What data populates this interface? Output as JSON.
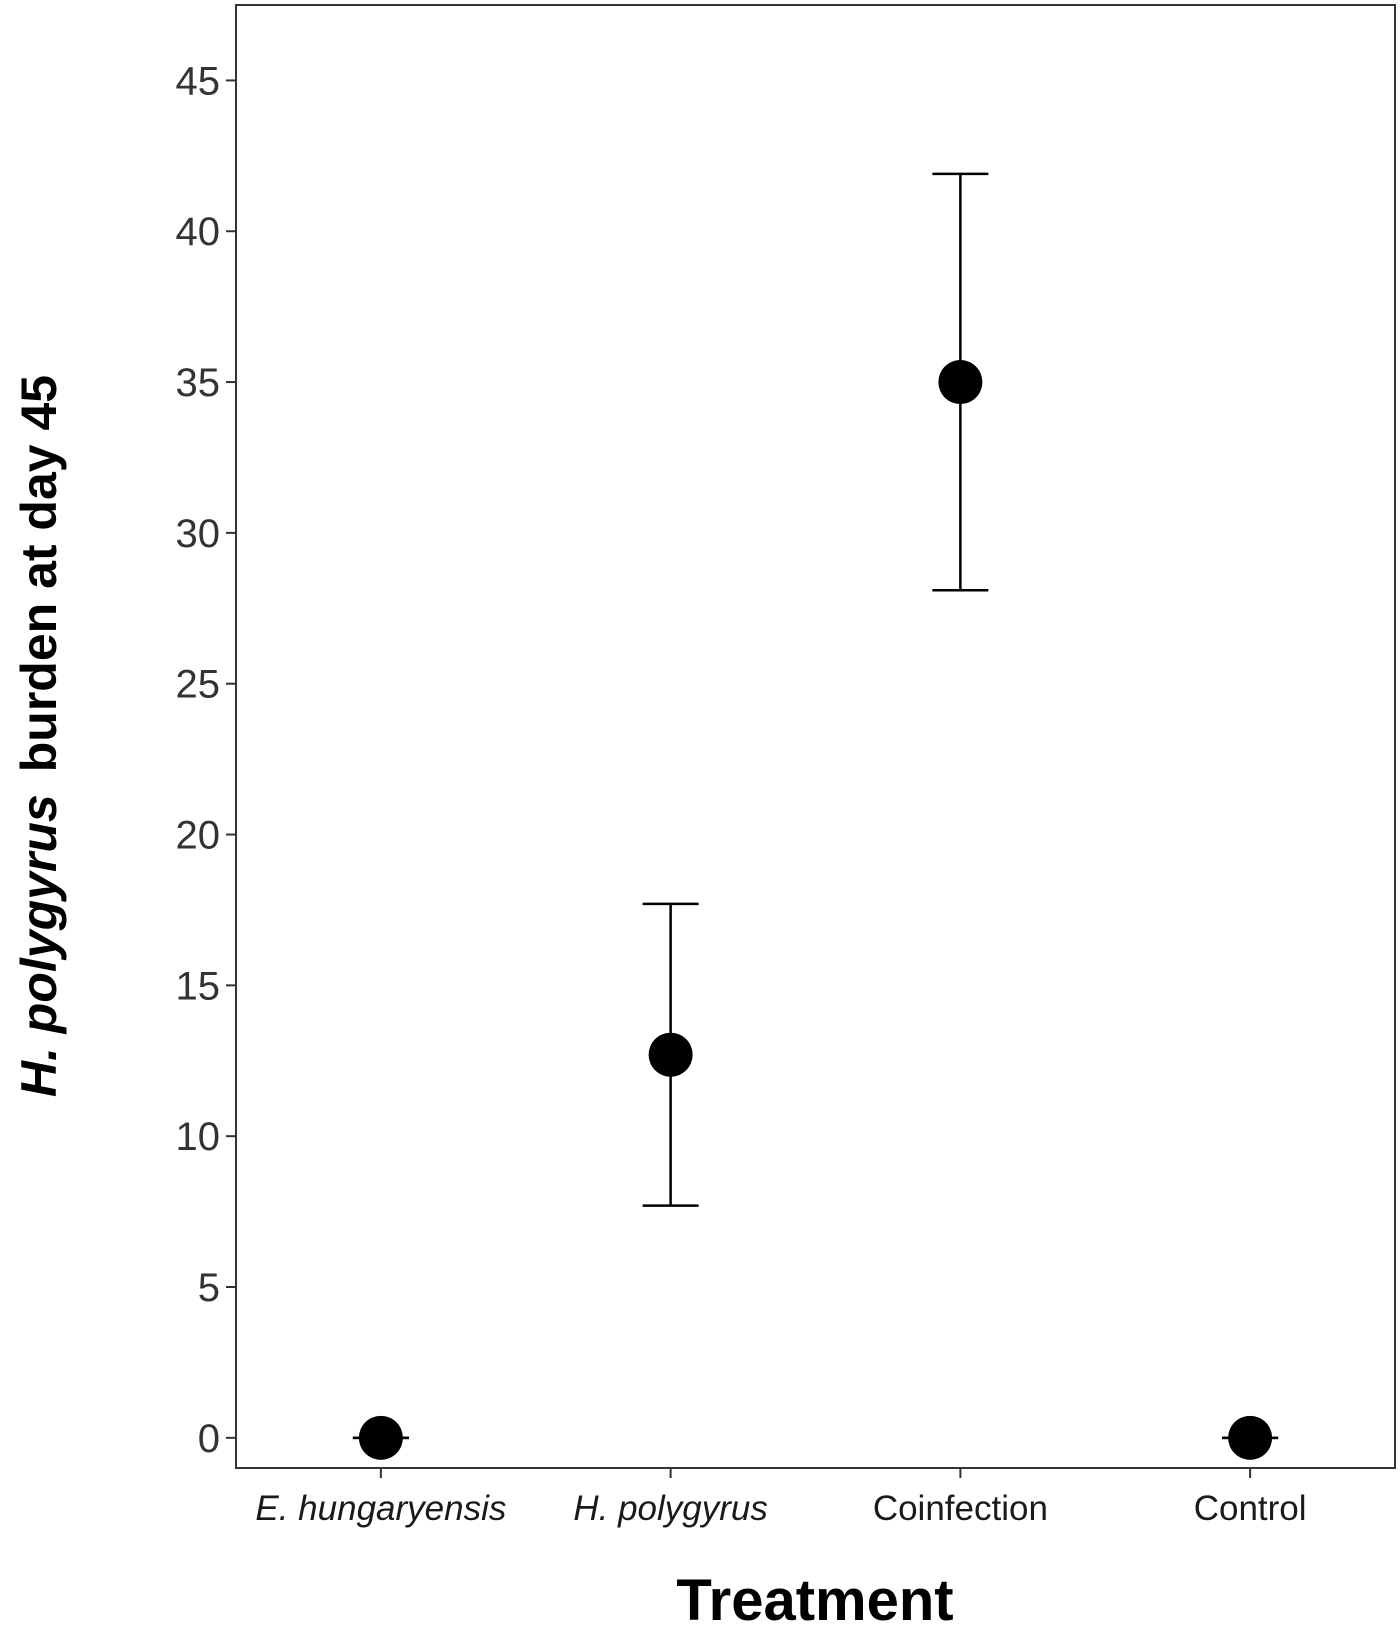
{
  "chart_data": {
    "type": "scatter",
    "xlabel": "Treatment",
    "ylabel_italic": "H. polygyrus",
    "ylabel_rest": "burden at day 45",
    "categories": [
      {
        "label": "E. hungaryensis",
        "italic": true
      },
      {
        "label": "H. polygyrus",
        "italic": true
      },
      {
        "label": "Coinfection",
        "italic": false
      },
      {
        "label": "Control",
        "italic": false
      }
    ],
    "points": [
      {
        "category": "E. hungaryensis",
        "mean": 0,
        "lower": 0,
        "upper": 0
      },
      {
        "category": "H. polygyrus",
        "mean": 12.7,
        "lower": 7.7,
        "upper": 17.7
      },
      {
        "category": "Coinfection",
        "mean": 35.0,
        "lower": 28.1,
        "upper": 41.9
      },
      {
        "category": "Control",
        "mean": 0,
        "lower": 0,
        "upper": 0
      }
    ],
    "yticks": [
      "0",
      "5",
      "10",
      "15",
      "20",
      "25",
      "30",
      "35",
      "40",
      "45"
    ],
    "ylim": [
      -1.0,
      47.5
    ],
    "grid": false,
    "legend": "none",
    "color": "#000000"
  }
}
